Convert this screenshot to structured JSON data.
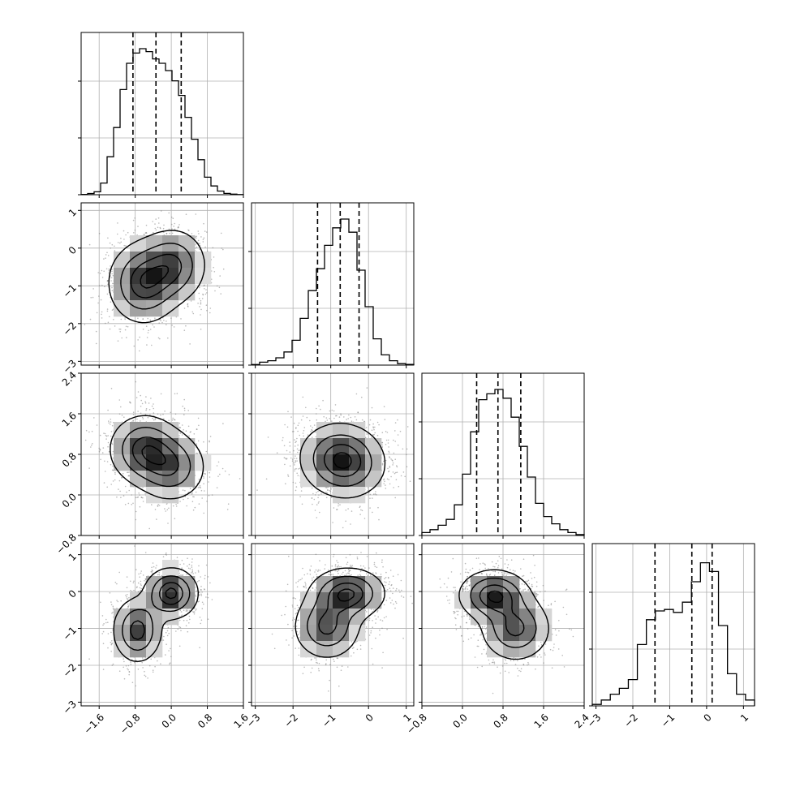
{
  "chart_data": {
    "type": "corner",
    "title": "",
    "parameters": [
      {
        "index": 0,
        "range": [
          -2.0,
          1.6
        ],
        "ticks": [
          "-1.6",
          "-0.8",
          "0.0",
          "0.8",
          "1.6"
        ],
        "tick_values": [
          -1.6,
          -0.8,
          0.0,
          0.8,
          1.6
        ],
        "quantiles": [
          -0.85,
          -0.34,
          0.22
        ],
        "hist_bins": [
          0.002,
          0.008,
          0.02,
          0.08,
          0.26,
          0.46,
          0.72,
          0.9,
          0.97,
          1.0,
          0.98,
          0.93,
          0.9,
          0.85,
          0.78,
          0.68,
          0.53,
          0.38,
          0.24,
          0.12,
          0.06,
          0.025,
          0.009,
          0.004,
          0.001
        ]
      },
      {
        "index": 1,
        "range": [
          -3.1,
          1.2
        ],
        "ticks": [
          "-3",
          "-2",
          "-1",
          "0",
          "1"
        ],
        "tick_values": [
          -3,
          -2,
          -1,
          0,
          1
        ],
        "quantiles": [
          -1.35,
          -0.75,
          -0.25
        ],
        "hist_bins": [
          0.004,
          0.02,
          0.03,
          0.05,
          0.09,
          0.17,
          0.32,
          0.51,
          0.66,
          0.82,
          0.94,
          1.0,
          0.91,
          0.65,
          0.4,
          0.18,
          0.07,
          0.03,
          0.01,
          0.005
        ]
      },
      {
        "index": 2,
        "range": [
          -0.8,
          2.4
        ],
        "ticks": [
          "-0.8",
          "0.0",
          "0.8",
          "1.6",
          "2.4"
        ],
        "tick_values": [
          -0.8,
          0.0,
          0.8,
          1.6,
          2.4
        ],
        "quantiles": [
          0.28,
          0.7,
          1.15
        ],
        "hist_bins": [
          0.02,
          0.04,
          0.07,
          0.11,
          0.21,
          0.42,
          0.71,
          0.93,
          0.97,
          1.0,
          0.94,
          0.81,
          0.61,
          0.4,
          0.22,
          0.13,
          0.08,
          0.04,
          0.02,
          0.006
        ]
      },
      {
        "index": 3,
        "range": [
          -3.1,
          1.3
        ],
        "ticks": [
          "-3",
          "-2",
          "-1",
          "0",
          "1"
        ],
        "tick_values": [
          -3,
          -2,
          -1,
          0,
          1
        ],
        "quantiles": [
          -1.4,
          -0.4,
          0.15
        ],
        "hist_bins": [
          0.01,
          0.04,
          0.08,
          0.12,
          0.18,
          0.42,
          0.59,
          0.65,
          0.66,
          0.64,
          0.71,
          0.85,
          0.98,
          0.92,
          0.55,
          0.22,
          0.08,
          0.04
        ]
      }
    ],
    "pairs": [
      {
        "row": 1,
        "col": 0,
        "modes": [
          {
            "x": -0.62,
            "y": -0.92,
            "sx": 0.4,
            "sy": 0.55,
            "w": 0.55
          },
          {
            "x": 0.05,
            "y": -0.45,
            "sx": 0.38,
            "sy": 0.5,
            "w": 0.45
          }
        ]
      },
      {
        "row": 2,
        "col": 0,
        "modes": [
          {
            "x": -0.6,
            "y": 0.9,
            "sx": 0.4,
            "sy": 0.35,
            "w": 0.55
          },
          {
            "x": 0.0,
            "y": 0.55,
            "sx": 0.4,
            "sy": 0.35,
            "w": 0.45
          }
        ]
      },
      {
        "row": 2,
        "col": 1,
        "modes": [
          {
            "x": -0.8,
            "y": 0.78,
            "sx": 0.55,
            "sy": 0.35,
            "w": 0.55
          },
          {
            "x": -0.55,
            "y": 0.55,
            "sx": 0.55,
            "sy": 0.35,
            "w": 0.45
          }
        ]
      },
      {
        "row": 3,
        "col": 0,
        "modes": [
          {
            "x": 0.0,
            "y": -0.05,
            "sx": 0.3,
            "sy": 0.35,
            "w": 0.55
          },
          {
            "x": -0.75,
            "y": -1.05,
            "sx": 0.28,
            "sy": 0.45,
            "w": 0.45
          }
        ]
      },
      {
        "row": 3,
        "col": 1,
        "modes": [
          {
            "x": -0.55,
            "y": -0.05,
            "sx": 0.5,
            "sy": 0.35,
            "w": 0.55
          },
          {
            "x": -1.1,
            "y": -0.95,
            "sx": 0.45,
            "sy": 0.45,
            "w": 0.45
          }
        ]
      },
      {
        "row": 3,
        "col": 2,
        "modes": [
          {
            "x": 0.62,
            "y": -0.1,
            "sx": 0.35,
            "sy": 0.35,
            "w": 0.55
          },
          {
            "x": 1.05,
            "y": -1.0,
            "sx": 0.35,
            "sy": 0.45,
            "w": 0.45
          }
        ]
      }
    ],
    "grid": true,
    "line_color": "#000000",
    "point_color": "#7f7f7f",
    "grid_color": "#b0b0b0"
  }
}
